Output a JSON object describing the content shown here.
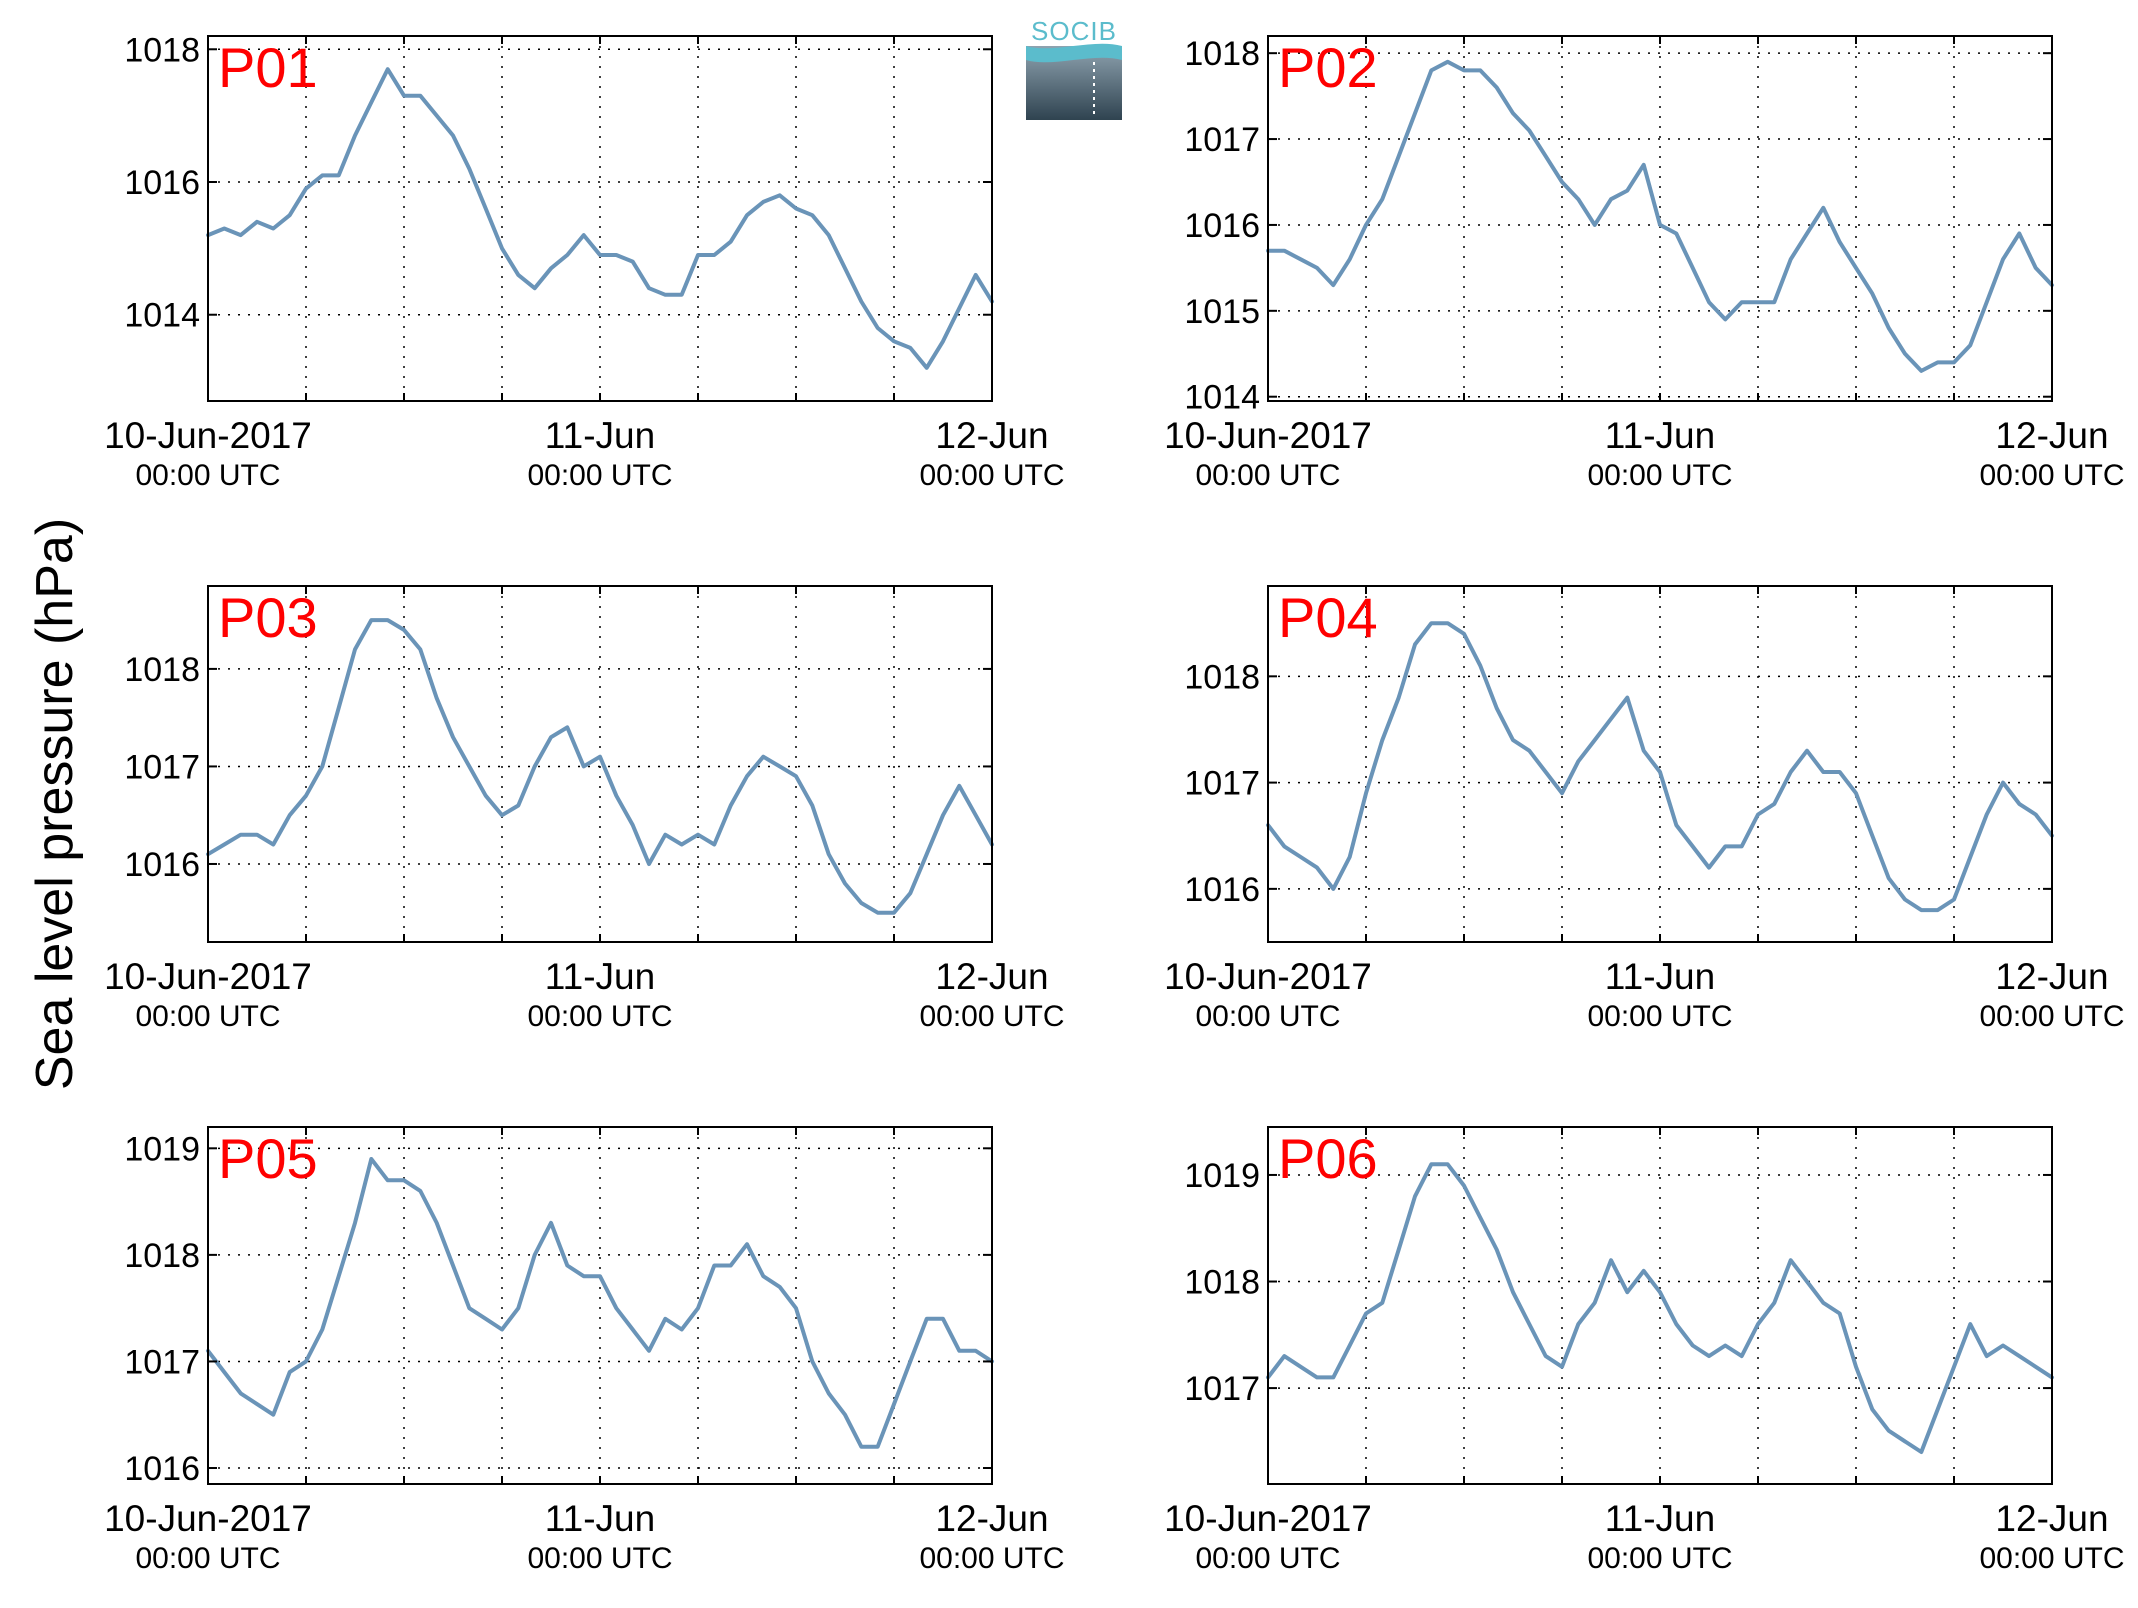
{
  "figure": {
    "ylabel": "Sea level pressure (hPa)",
    "logo_text": "SOCIB",
    "line_color": "#6a94b8",
    "label_color": "#ff0000",
    "grid": true
  },
  "chart_data": [
    {
      "type": "line",
      "name": "P01",
      "xlim": [
        0,
        48
      ],
      "xticks": [
        0,
        24,
        48
      ],
      "xtick_labels": [
        [
          "10-Jun-2017",
          "00:00 UTC"
        ],
        [
          "11-Jun",
          "00:00 UTC"
        ],
        [
          "12-Jun",
          "00:00 UTC"
        ]
      ],
      "ylim": [
        1012.7,
        1018.2
      ],
      "yticks": [
        1014,
        1016,
        1018
      ],
      "x": [
        0,
        1,
        2,
        3,
        4,
        5,
        6,
        7,
        8,
        9,
        10,
        11,
        12,
        13,
        14,
        15,
        16,
        17,
        18,
        19,
        20,
        21,
        22,
        23,
        24,
        25,
        26,
        27,
        28,
        29,
        30,
        31,
        32,
        33,
        34,
        35,
        36,
        37,
        38,
        39,
        40,
        41,
        42,
        43,
        44,
        45,
        46,
        47,
        48
      ],
      "y": [
        1015.2,
        1015.3,
        1015.2,
        1015.4,
        1015.3,
        1015.5,
        1015.9,
        1016.1,
        1016.1,
        1016.7,
        1017.2,
        1017.7,
        1017.3,
        1017.3,
        1017.0,
        1016.7,
        1016.2,
        1015.6,
        1015.0,
        1014.6,
        1014.4,
        1014.7,
        1014.9,
        1015.2,
        1014.9,
        1014.9,
        1014.8,
        1014.4,
        1014.3,
        1014.3,
        1014.9,
        1014.9,
        1015.1,
        1015.5,
        1015.7,
        1015.8,
        1015.6,
        1015.5,
        1015.2,
        1014.7,
        1014.2,
        1013.8,
        1013.6,
        1013.5,
        1013.2,
        1013.6,
        1014.1,
        1014.6,
        1014.2
      ]
    },
    {
      "type": "line",
      "name": "P02",
      "xlim": [
        0,
        48
      ],
      "xticks": [
        0,
        24,
        48
      ],
      "xtick_labels": [
        [
          "10-Jun-2017",
          "00:00 UTC"
        ],
        [
          "11-Jun",
          "00:00 UTC"
        ],
        [
          "12-Jun",
          "00:00 UTC"
        ]
      ],
      "ylim": [
        1013.95,
        1018.2
      ],
      "yticks": [
        1014,
        1015,
        1016,
        1017,
        1018
      ],
      "x": [
        0,
        1,
        2,
        3,
        4,
        5,
        6,
        7,
        8,
        9,
        10,
        11,
        12,
        13,
        14,
        15,
        16,
        17,
        18,
        19,
        20,
        21,
        22,
        23,
        24,
        25,
        26,
        27,
        28,
        29,
        30,
        31,
        32,
        33,
        34,
        35,
        36,
        37,
        38,
        39,
        40,
        41,
        42,
        43,
        44,
        45,
        46,
        47,
        48
      ],
      "y": [
        1015.7,
        1015.7,
        1015.6,
        1015.5,
        1015.3,
        1015.6,
        1016.0,
        1016.3,
        1016.8,
        1017.3,
        1017.8,
        1017.9,
        1017.8,
        1017.8,
        1017.6,
        1017.3,
        1017.1,
        1016.8,
        1016.5,
        1016.3,
        1016.0,
        1016.3,
        1016.4,
        1016.7,
        1016.0,
        1015.9,
        1015.5,
        1015.1,
        1014.9,
        1015.1,
        1015.1,
        1015.1,
        1015.6,
        1015.9,
        1016.2,
        1015.8,
        1015.5,
        1015.2,
        1014.8,
        1014.5,
        1014.3,
        1014.4,
        1014.4,
        1014.6,
        1015.1,
        1015.6,
        1015.9,
        1015.5,
        1015.3
      ]
    },
    {
      "type": "line",
      "name": "P03",
      "xlim": [
        0,
        48
      ],
      "xticks": [
        0,
        24,
        48
      ],
      "xtick_labels": [
        [
          "10-Jun-2017",
          "00:00 UTC"
        ],
        [
          "11-Jun",
          "00:00 UTC"
        ],
        [
          "12-Jun",
          "00:00 UTC"
        ]
      ],
      "ylim": [
        1015.2,
        1018.85
      ],
      "yticks": [
        1016,
        1017,
        1018
      ],
      "x": [
        0,
        1,
        2,
        3,
        4,
        5,
        6,
        7,
        8,
        9,
        10,
        11,
        12,
        13,
        14,
        15,
        16,
        17,
        18,
        19,
        20,
        21,
        22,
        23,
        24,
        25,
        26,
        27,
        28,
        29,
        30,
        31,
        32,
        33,
        34,
        35,
        36,
        37,
        38,
        39,
        40,
        41,
        42,
        43,
        44,
        45,
        46,
        47,
        48
      ],
      "y": [
        1016.1,
        1016.2,
        1016.3,
        1016.3,
        1016.2,
        1016.5,
        1016.7,
        1017.0,
        1017.6,
        1018.2,
        1018.5,
        1018.5,
        1018.4,
        1018.2,
        1017.7,
        1017.3,
        1017.0,
        1016.7,
        1016.5,
        1016.6,
        1017.0,
        1017.3,
        1017.4,
        1017.0,
        1017.1,
        1016.7,
        1016.4,
        1016.0,
        1016.3,
        1016.2,
        1016.3,
        1016.2,
        1016.6,
        1016.9,
        1017.1,
        1017.0,
        1016.9,
        1016.6,
        1016.1,
        1015.8,
        1015.6,
        1015.5,
        1015.5,
        1015.7,
        1016.1,
        1016.5,
        1016.8,
        1016.5,
        1016.2
      ]
    },
    {
      "type": "line",
      "name": "P04",
      "xlim": [
        0,
        48
      ],
      "xticks": [
        0,
        24,
        48
      ],
      "xtick_labels": [
        [
          "10-Jun-2017",
          "00:00 UTC"
        ],
        [
          "11-Jun",
          "00:00 UTC"
        ],
        [
          "12-Jun",
          "00:00 UTC"
        ]
      ],
      "ylim": [
        1015.5,
        1018.85
      ],
      "yticks": [
        1016,
        1017,
        1018
      ],
      "x": [
        0,
        1,
        2,
        3,
        4,
        5,
        6,
        7,
        8,
        9,
        10,
        11,
        12,
        13,
        14,
        15,
        16,
        17,
        18,
        19,
        20,
        21,
        22,
        23,
        24,
        25,
        26,
        27,
        28,
        29,
        30,
        31,
        32,
        33,
        34,
        35,
        36,
        37,
        38,
        39,
        40,
        41,
        42,
        43,
        44,
        45,
        46,
        47,
        48
      ],
      "y": [
        1016.6,
        1016.4,
        1016.3,
        1016.2,
        1016.0,
        1016.3,
        1016.9,
        1017.4,
        1017.8,
        1018.3,
        1018.5,
        1018.5,
        1018.4,
        1018.1,
        1017.7,
        1017.4,
        1017.3,
        1017.1,
        1016.9,
        1017.2,
        1017.4,
        1017.6,
        1017.8,
        1017.3,
        1017.1,
        1016.6,
        1016.4,
        1016.2,
        1016.4,
        1016.4,
        1016.7,
        1016.8,
        1017.1,
        1017.3,
        1017.1,
        1017.1,
        1016.9,
        1016.5,
        1016.1,
        1015.9,
        1015.8,
        1015.8,
        1015.9,
        1016.3,
        1016.7,
        1017.0,
        1016.8,
        1016.7,
        1016.5
      ]
    },
    {
      "type": "line",
      "name": "P05",
      "xlim": [
        0,
        48
      ],
      "xticks": [
        0,
        24,
        48
      ],
      "xtick_labels": [
        [
          "10-Jun-2017",
          "00:00 UTC"
        ],
        [
          "11-Jun",
          "00:00 UTC"
        ],
        [
          "12-Jun",
          "00:00 UTC"
        ]
      ],
      "ylim": [
        1015.85,
        1019.2
      ],
      "yticks": [
        1016,
        1017,
        1018,
        1019
      ],
      "x": [
        0,
        1,
        2,
        3,
        4,
        5,
        6,
        7,
        8,
        9,
        10,
        11,
        12,
        13,
        14,
        15,
        16,
        17,
        18,
        19,
        20,
        21,
        22,
        23,
        24,
        25,
        26,
        27,
        28,
        29,
        30,
        31,
        32,
        33,
        34,
        35,
        36,
        37,
        38,
        39,
        40,
        41,
        42,
        43,
        44,
        45,
        46,
        47,
        48
      ],
      "y": [
        1017.1,
        1016.9,
        1016.7,
        1016.6,
        1016.5,
        1016.9,
        1017.0,
        1017.3,
        1017.8,
        1018.3,
        1018.9,
        1018.7,
        1018.7,
        1018.6,
        1018.3,
        1017.9,
        1017.5,
        1017.4,
        1017.3,
        1017.5,
        1018.0,
        1018.3,
        1017.9,
        1017.8,
        1017.8,
        1017.5,
        1017.3,
        1017.1,
        1017.4,
        1017.3,
        1017.5,
        1017.9,
        1017.9,
        1018.1,
        1017.8,
        1017.7,
        1017.5,
        1017.0,
        1016.7,
        1016.5,
        1016.2,
        1016.2,
        1016.6,
        1017.0,
        1017.4,
        1017.4,
        1017.1,
        1017.1,
        1017.0
      ]
    },
    {
      "type": "line",
      "name": "P06",
      "xlim": [
        0,
        48
      ],
      "xticks": [
        0,
        24,
        48
      ],
      "xtick_labels": [
        [
          "10-Jun-2017",
          "00:00 UTC"
        ],
        [
          "11-Jun",
          "00:00 UTC"
        ],
        [
          "12-Jun",
          "00:00 UTC"
        ]
      ],
      "ylim": [
        1016.1,
        1019.45
      ],
      "yticks": [
        1017,
        1018,
        1019
      ],
      "x": [
        0,
        1,
        2,
        3,
        4,
        5,
        6,
        7,
        8,
        9,
        10,
        11,
        12,
        13,
        14,
        15,
        16,
        17,
        18,
        19,
        20,
        21,
        22,
        23,
        24,
        25,
        26,
        27,
        28,
        29,
        30,
        31,
        32,
        33,
        34,
        35,
        36,
        37,
        38,
        39,
        40,
        41,
        42,
        43,
        44,
        45,
        46,
        47,
        48
      ],
      "y": [
        1017.1,
        1017.3,
        1017.2,
        1017.1,
        1017.1,
        1017.4,
        1017.7,
        1017.8,
        1018.3,
        1018.8,
        1019.1,
        1019.1,
        1018.9,
        1018.6,
        1018.3,
        1017.9,
        1017.6,
        1017.3,
        1017.2,
        1017.6,
        1017.8,
        1018.2,
        1017.9,
        1018.1,
        1017.9,
        1017.6,
        1017.4,
        1017.3,
        1017.4,
        1017.3,
        1017.6,
        1017.8,
        1018.2,
        1018.0,
        1017.8,
        1017.7,
        1017.2,
        1016.8,
        1016.6,
        1016.5,
        1016.4,
        1016.8,
        1017.2,
        1017.6,
        1017.3,
        1017.4,
        1017.3,
        1017.2,
        1017.1
      ]
    }
  ]
}
